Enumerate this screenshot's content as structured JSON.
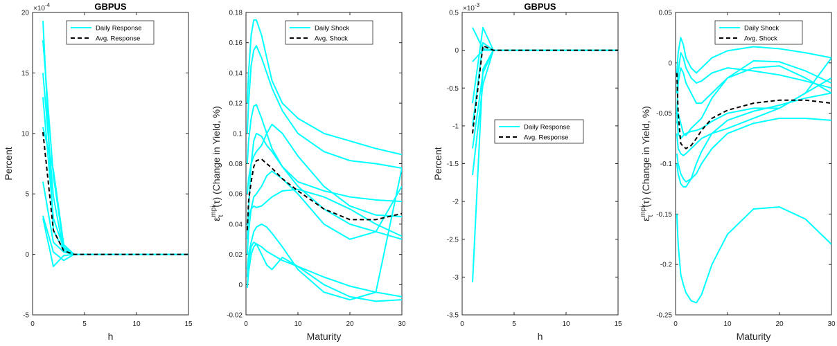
{
  "chart_data": [
    {
      "type": "line",
      "title": "GBPUS",
      "xlabel": "h",
      "ylabel": "Percent",
      "exponent": "×10",
      "exponent_power": "-4",
      "xlim": [
        0,
        15
      ],
      "ylim": [
        -5,
        20
      ],
      "xticks": [
        "0",
        "5",
        "10",
        "15"
      ],
      "yticks": [
        "-5",
        "0",
        "5",
        "10",
        "15",
        "20"
      ],
      "legend": {
        "placement": "top-center",
        "entries": [
          "Daily Response",
          "Avg. Response"
        ]
      },
      "colors": {
        "daily": "#00ffff",
        "avg": "#000000"
      },
      "x": [
        1,
        2,
        3,
        4,
        5,
        6,
        7,
        8,
        9,
        10,
        11,
        12,
        13,
        14,
        15
      ],
      "daily": [
        [
          19.3,
          2.0,
          0.3,
          0,
          0,
          0,
          0,
          0,
          0,
          0,
          0,
          0,
          0,
          0,
          0
        ],
        [
          17.7,
          6.5,
          0.6,
          0,
          0,
          0,
          0,
          0,
          0,
          0,
          0,
          0,
          0,
          0,
          0
        ],
        [
          15.0,
          4.8,
          0.2,
          0,
          0,
          0,
          0,
          0,
          0,
          0,
          0,
          0,
          0,
          0,
          0
        ],
        [
          13.0,
          3.0,
          0.5,
          0,
          0,
          0,
          0,
          0,
          0,
          0,
          0,
          0,
          0,
          0,
          0
        ],
        [
          10.5,
          7.0,
          0.8,
          0,
          0,
          0,
          0,
          0,
          0,
          0,
          0,
          0,
          0,
          0,
          0
        ],
        [
          6.0,
          1.0,
          0.2,
          0,
          0,
          0,
          0,
          0,
          0,
          0,
          0,
          0,
          0,
          0,
          0
        ],
        [
          3.0,
          -1.0,
          -0.1,
          0,
          0,
          0,
          0,
          0,
          0,
          0,
          0,
          0,
          0,
          0,
          0
        ],
        [
          3.2,
          0.2,
          -0.5,
          0,
          0,
          0,
          0,
          0,
          0,
          0,
          0,
          0,
          0,
          0,
          0
        ]
      ],
      "avg": [
        10.1,
        2.0,
        0.3,
        0,
        0,
        0,
        0,
        0,
        0,
        0,
        0,
        0,
        0,
        0,
        0
      ]
    },
    {
      "type": "line",
      "title": "",
      "xlabel": "Maturity",
      "ylabel": "ε",
      "ylabel_sup": "mpi",
      "ylabel_sub": "t",
      "ylabel_tau": "(τ)",
      "ylabel_rest": " (Change in Yield, %)",
      "xlim": [
        0,
        30
      ],
      "ylim": [
        -0.02,
        0.18
      ],
      "xticks": [
        "0",
        "10",
        "20",
        "30"
      ],
      "yticks": [
        "-0.02",
        "0",
        "0.02",
        "0.04",
        "0.06",
        "0.08",
        "0.1",
        "0.12",
        "0.14",
        "0.16",
        "0.18"
      ],
      "legend": {
        "placement": "top-right",
        "entries": [
          "Daily Shock",
          "Avg. Shock"
        ]
      },
      "colors": {
        "daily": "#00ffff",
        "avg": "#000000"
      },
      "x": [
        0.25,
        0.5,
        1,
        1.5,
        2,
        3,
        4,
        5,
        7,
        10,
        15,
        20,
        25,
        30
      ],
      "daily": [
        [
          0.12,
          0.14,
          0.165,
          0.175,
          0.175,
          0.165,
          0.15,
          0.135,
          0.12,
          0.11,
          0.1,
          0.095,
          0.09,
          0.086
        ],
        [
          0.1,
          0.12,
          0.145,
          0.155,
          0.158,
          0.15,
          0.14,
          0.13,
          0.115,
          0.1,
          0.088,
          0.082,
          0.08,
          0.077
        ],
        [
          0.08,
          0.095,
          0.11,
          0.118,
          0.119,
          0.11,
          0.1,
          0.09,
          0.078,
          0.068,
          0.062,
          0.058,
          0.056,
          0.055
        ],
        [
          0.03,
          0.05,
          0.08,
          0.095,
          0.1,
          0.098,
          0.092,
          0.088,
          0.078,
          0.065,
          0.05,
          0.04,
          0.035,
          0.03
        ],
        [
          0.06,
          0.07,
          0.08,
          0.085,
          0.088,
          0.092,
          0.1,
          0.106,
          0.1,
          0.085,
          0.065,
          0.052,
          0.046,
          0.045
        ],
        [
          0.04,
          0.045,
          0.05,
          0.052,
          0.051,
          0.052,
          0.055,
          0.058,
          0.062,
          0.063,
          0.058,
          0.05,
          0.04,
          0.032
        ],
        [
          0.02,
          0.035,
          0.05,
          0.058,
          0.06,
          0.065,
          0.072,
          0.075,
          0.07,
          0.06,
          0.04,
          0.03,
          0.035,
          0.065
        ],
        [
          0.01,
          0.02,
          0.028,
          0.035,
          0.038,
          0.04,
          0.038,
          0.034,
          0.025,
          0.01,
          -0.005,
          -0.01,
          -0.005,
          0.077
        ],
        [
          0.005,
          0.015,
          0.025,
          0.028,
          0.027,
          0.02,
          0.013,
          0.01,
          0.018,
          0.012,
          0.0,
          -0.008,
          -0.011,
          -0.01
        ],
        [
          -0.002,
          0.008,
          0.02,
          0.025,
          0.027,
          0.025,
          0.022,
          0.02,
          0.016,
          0.012,
          0.005,
          -0.001,
          -0.005,
          -0.008
        ]
      ],
      "avg": [
        0.036,
        0.055,
        0.068,
        0.078,
        0.082,
        0.083,
        0.08,
        0.077,
        0.07,
        0.062,
        0.05,
        0.043,
        0.043,
        0.047
      ]
    },
    {
      "type": "line",
      "title": "GBPUS",
      "xlabel": "h",
      "ylabel": "Percent",
      "exponent": "×10",
      "exponent_power": "-3",
      "xlim": [
        0,
        15
      ],
      "ylim": [
        -3.5,
        0.5
      ],
      "xticks": [
        "0",
        "5",
        "10",
        "15"
      ],
      "yticks": [
        "-3.5",
        "-3",
        "-2.5",
        "-2",
        "-1.5",
        "-1",
        "-0.5",
        "0",
        "0.5"
      ],
      "legend": {
        "placement": "center",
        "entries": [
          "Daily Response",
          "Avg. Response"
        ]
      },
      "colors": {
        "daily": "#00ffff",
        "avg": "#000000"
      },
      "x": [
        1,
        2,
        3,
        4,
        5,
        6,
        7,
        8,
        9,
        10,
        11,
        12,
        13,
        14,
        15
      ],
      "daily": [
        [
          0.3,
          0.02,
          0,
          0,
          0,
          0,
          0,
          0,
          0,
          0,
          0,
          0,
          0,
          0,
          0
        ],
        [
          -0.15,
          0.0,
          0,
          0,
          0,
          0,
          0,
          0,
          0,
          0,
          0,
          0,
          0,
          0,
          0
        ],
        [
          -0.7,
          0.3,
          0,
          0,
          0,
          0,
          0,
          0,
          0,
          0,
          0,
          0,
          0,
          0,
          0
        ],
        [
          -1.0,
          0.1,
          0,
          0,
          0,
          0,
          0,
          0,
          0,
          0,
          0,
          0,
          0,
          0,
          0
        ],
        [
          -1.3,
          -0.3,
          0,
          0,
          0,
          0,
          0,
          0,
          0,
          0,
          0,
          0,
          0,
          0,
          0
        ],
        [
          -1.65,
          -0.45,
          0,
          0,
          0,
          0,
          0,
          0,
          0,
          0,
          0,
          0,
          0,
          0,
          0
        ],
        [
          -3.07,
          -0.25,
          0,
          0,
          0,
          0,
          0,
          0,
          0,
          0,
          0,
          0,
          0,
          0,
          0
        ]
      ],
      "avg": [
        -1.1,
        0.06,
        0,
        0,
        0,
        0,
        0,
        0,
        0,
        0,
        0,
        0,
        0,
        0,
        0
      ]
    },
    {
      "type": "line",
      "title": "",
      "xlabel": "Maturity",
      "ylabel": "ε",
      "ylabel_sup": "mpi",
      "ylabel_sub": "t",
      "ylabel_tau": "(τ)",
      "ylabel_rest": " (Change in Yield, %)",
      "xlim": [
        0,
        30
      ],
      "ylim": [
        -0.25,
        0.05
      ],
      "xticks": [
        "0",
        "10",
        "20",
        "30"
      ],
      "yticks": [
        "-0.25",
        "-0.2",
        "-0.15",
        "-0.1",
        "-0.05",
        "0",
        "0.05"
      ],
      "legend": {
        "placement": "top-right",
        "entries": [
          "Daily Shock",
          "Avg. Shock"
        ]
      },
      "colors": {
        "daily": "#00ffff",
        "avg": "#000000"
      },
      "x": [
        0.25,
        0.5,
        1,
        1.5,
        2,
        3,
        4,
        5,
        7,
        10,
        15,
        20,
        25,
        30
      ],
      "daily": [
        [
          -0.01,
          0.01,
          0.025,
          0.018,
          0.005,
          -0.005,
          -0.01,
          -0.005,
          0.005,
          0.012,
          0.016,
          0.014,
          0.01,
          0.005
        ],
        [
          -0.03,
          -0.01,
          0.01,
          0.005,
          -0.005,
          -0.015,
          -0.02,
          -0.018,
          -0.01,
          -0.005,
          -0.008,
          -0.012,
          -0.018,
          -0.025
        ],
        [
          -0.05,
          -0.02,
          -0.005,
          -0.01,
          -0.02,
          -0.03,
          -0.04,
          -0.04,
          -0.03,
          -0.015,
          0.002,
          0.001,
          -0.008,
          -0.02
        ],
        [
          -0.06,
          -0.05,
          -0.06,
          -0.07,
          -0.072,
          -0.065,
          -0.06,
          -0.055,
          -0.035,
          -0.015,
          -0.005,
          -0.003,
          -0.015,
          -0.03
        ],
        [
          -0.05,
          -0.07,
          -0.075,
          -0.072,
          -0.07,
          -0.068,
          -0.067,
          -0.065,
          -0.058,
          -0.05,
          -0.045,
          -0.045,
          -0.03,
          0.005
        ],
        [
          -0.07,
          -0.085,
          -0.09,
          -0.092,
          -0.09,
          -0.085,
          -0.08,
          -0.075,
          -0.07,
          -0.065,
          -0.055,
          -0.045,
          -0.03,
          -0.015
        ],
        [
          -0.09,
          -0.1,
          -0.11,
          -0.115,
          -0.118,
          -0.115,
          -0.11,
          -0.1,
          -0.085,
          -0.07,
          -0.06,
          -0.055,
          -0.055,
          -0.057
        ],
        [
          -0.1,
          -0.11,
          -0.12,
          -0.123,
          -0.123,
          -0.115,
          -0.1,
          -0.088,
          -0.07,
          -0.057,
          -0.048,
          -0.042,
          -0.035,
          -0.03
        ],
        [
          -0.15,
          -0.18,
          -0.21,
          -0.22,
          -0.228,
          -0.236,
          -0.238,
          -0.23,
          -0.2,
          -0.17,
          -0.145,
          -0.143,
          -0.155,
          -0.18
        ]
      ],
      "avg": [
        -0.01,
        -0.05,
        -0.08,
        -0.083,
        -0.085,
        -0.082,
        -0.075,
        -0.067,
        -0.055,
        -0.047,
        -0.04,
        -0.037,
        -0.037,
        -0.04
      ]
    }
  ]
}
